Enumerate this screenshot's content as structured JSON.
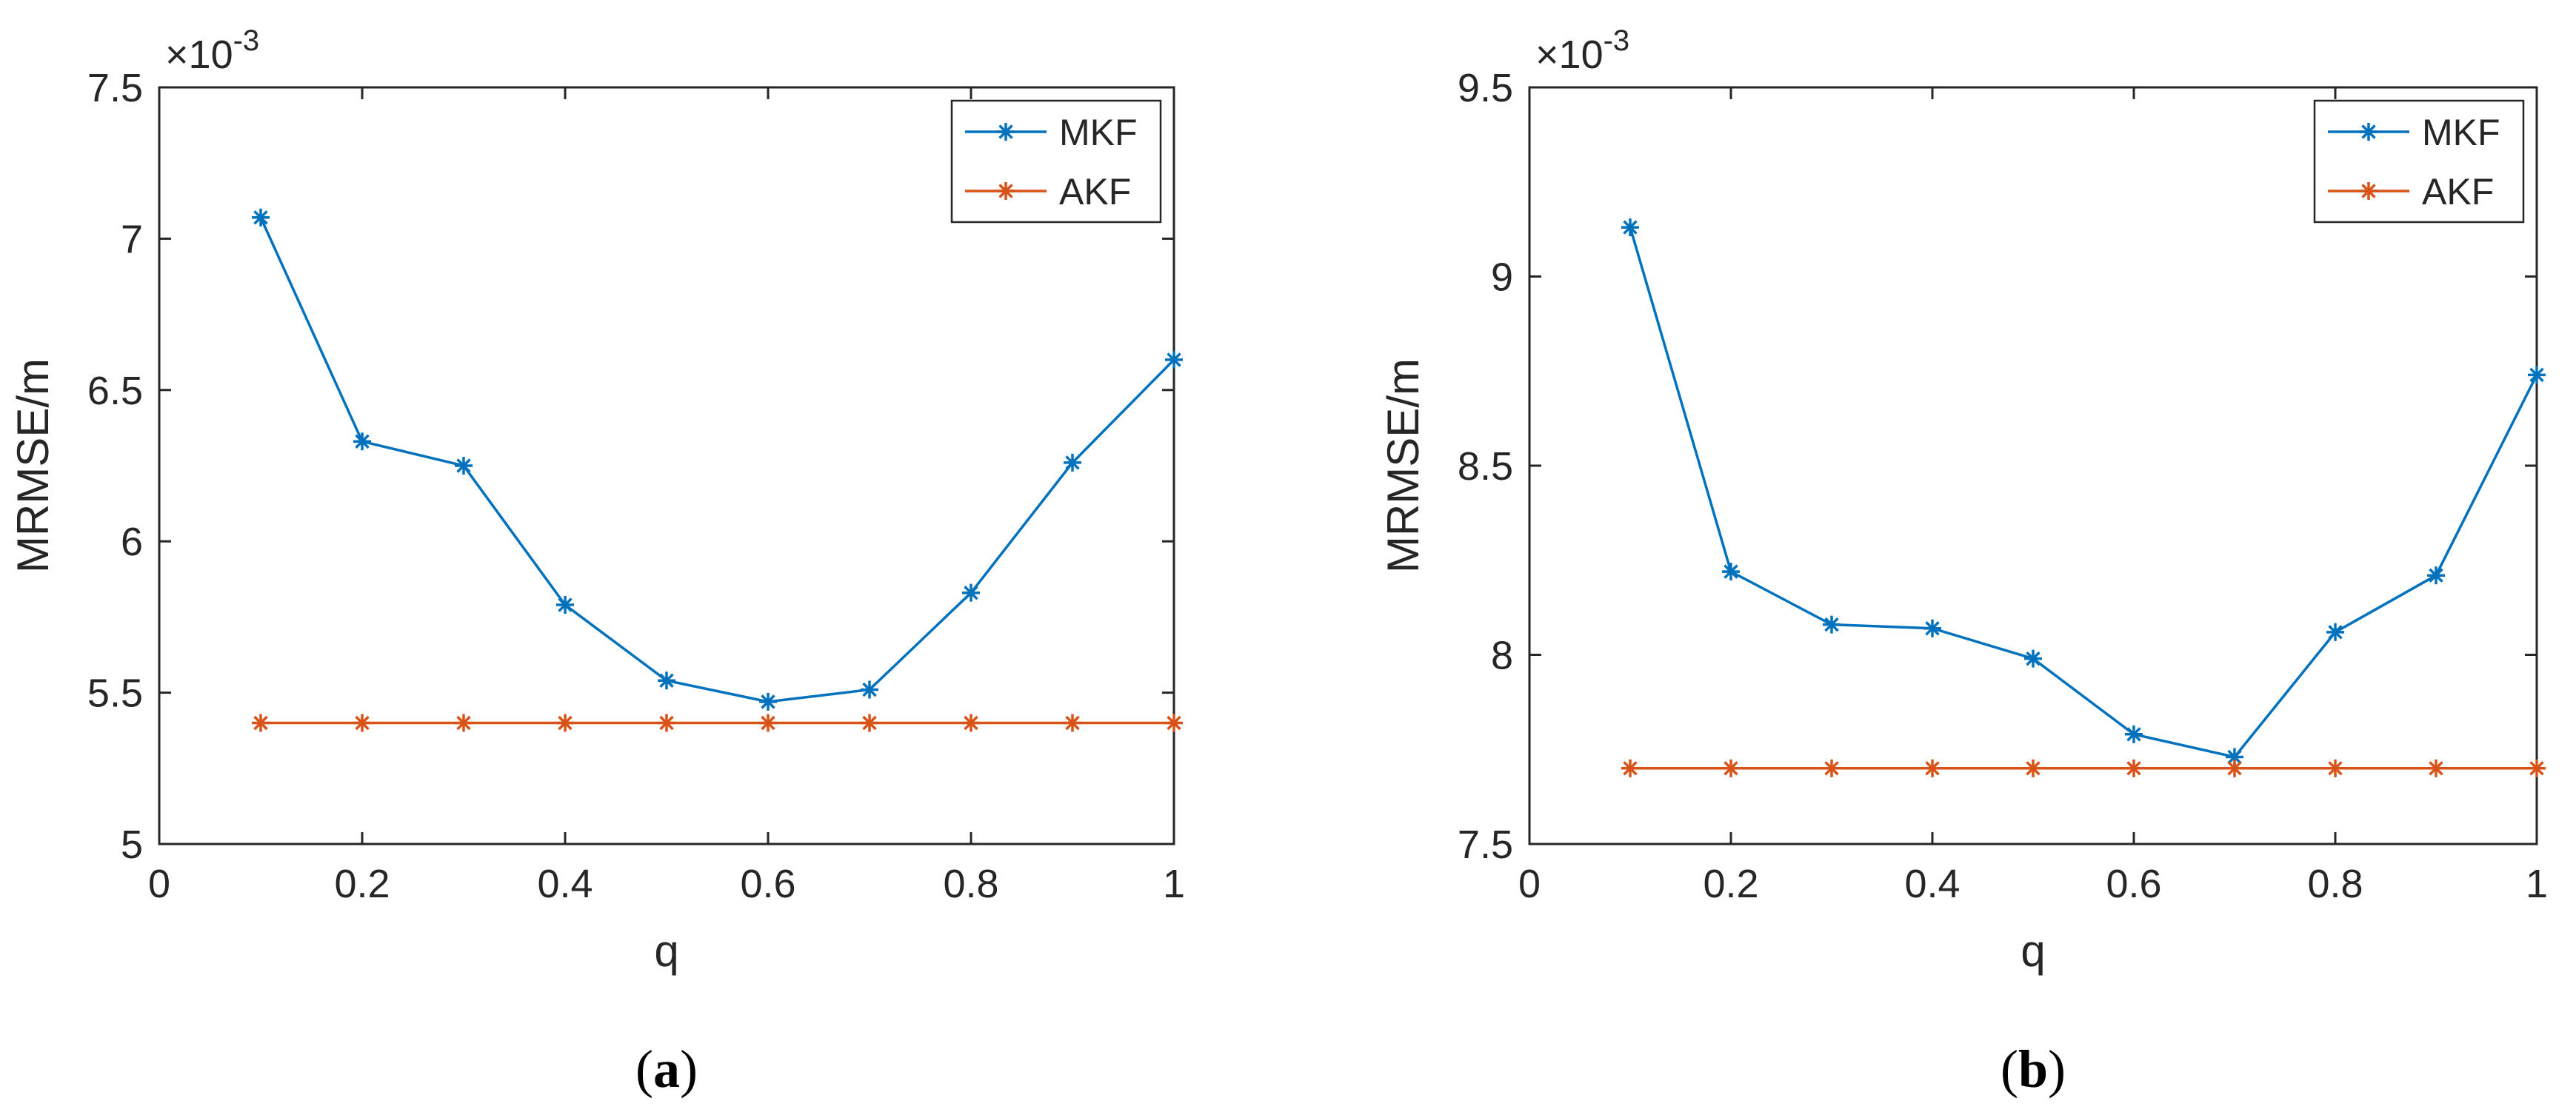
{
  "chart_data": [
    {
      "type": "line",
      "caption": "a",
      "xlabel": "q",
      "ylabel": "MRMSE/m",
      "xlim": [
        0,
        1
      ],
      "ylim": [
        5,
        7.5
      ],
      "y_exponent": "×10",
      "y_exponent_power": "-3",
      "x_ticks": [
        0,
        0.2,
        0.4,
        0.6,
        0.8,
        1
      ],
      "x_tick_labels": [
        "0",
        "0.2",
        "0.4",
        "0.6",
        "0.8",
        "1"
      ],
      "y_ticks": [
        5,
        5.5,
        6,
        6.5,
        7,
        7.5
      ],
      "y_tick_labels": [
        "5",
        "5.5",
        "6",
        "6.5",
        "7",
        "7.5"
      ],
      "legend_position": "top-right",
      "x": [
        0.1,
        0.2,
        0.3,
        0.4,
        0.5,
        0.6,
        0.7,
        0.8,
        0.9,
        1.0
      ],
      "series": [
        {
          "name": "MKF",
          "color": "#0072BD",
          "values": [
            7.07,
            6.33,
            6.25,
            5.79,
            5.54,
            5.47,
            5.51,
            5.83,
            6.26,
            6.6
          ]
        },
        {
          "name": "AKF",
          "color": "#D95319",
          "values": [
            5.4,
            5.4,
            5.4,
            5.4,
            5.4,
            5.4,
            5.4,
            5.4,
            5.4,
            5.4
          ]
        }
      ]
    },
    {
      "type": "line",
      "caption": "b",
      "xlabel": "q",
      "ylabel": "MRMSE/m",
      "xlim": [
        0,
        1
      ],
      "ylim": [
        7.5,
        9.5
      ],
      "y_exponent": "×10",
      "y_exponent_power": "-3",
      "x_ticks": [
        0,
        0.2,
        0.4,
        0.6,
        0.8,
        1
      ],
      "x_tick_labels": [
        "0",
        "0.2",
        "0.4",
        "0.6",
        "0.8",
        "1"
      ],
      "y_ticks": [
        7.5,
        8,
        8.5,
        9,
        9.5
      ],
      "y_tick_labels": [
        "7.5",
        "8",
        "8.5",
        "9",
        "9.5"
      ],
      "legend_position": "top-right",
      "x": [
        0.1,
        0.2,
        0.3,
        0.4,
        0.5,
        0.6,
        0.7,
        0.8,
        0.9,
        1.0
      ],
      "series": [
        {
          "name": "MKF",
          "color": "#0072BD",
          "values": [
            9.13,
            8.22,
            8.08,
            8.07,
            7.99,
            7.79,
            7.73,
            8.06,
            8.21,
            8.74
          ]
        },
        {
          "name": "AKF",
          "color": "#D95319",
          "values": [
            7.7,
            7.7,
            7.7,
            7.7,
            7.7,
            7.7,
            7.7,
            7.7,
            7.7,
            7.7
          ]
        }
      ]
    }
  ]
}
